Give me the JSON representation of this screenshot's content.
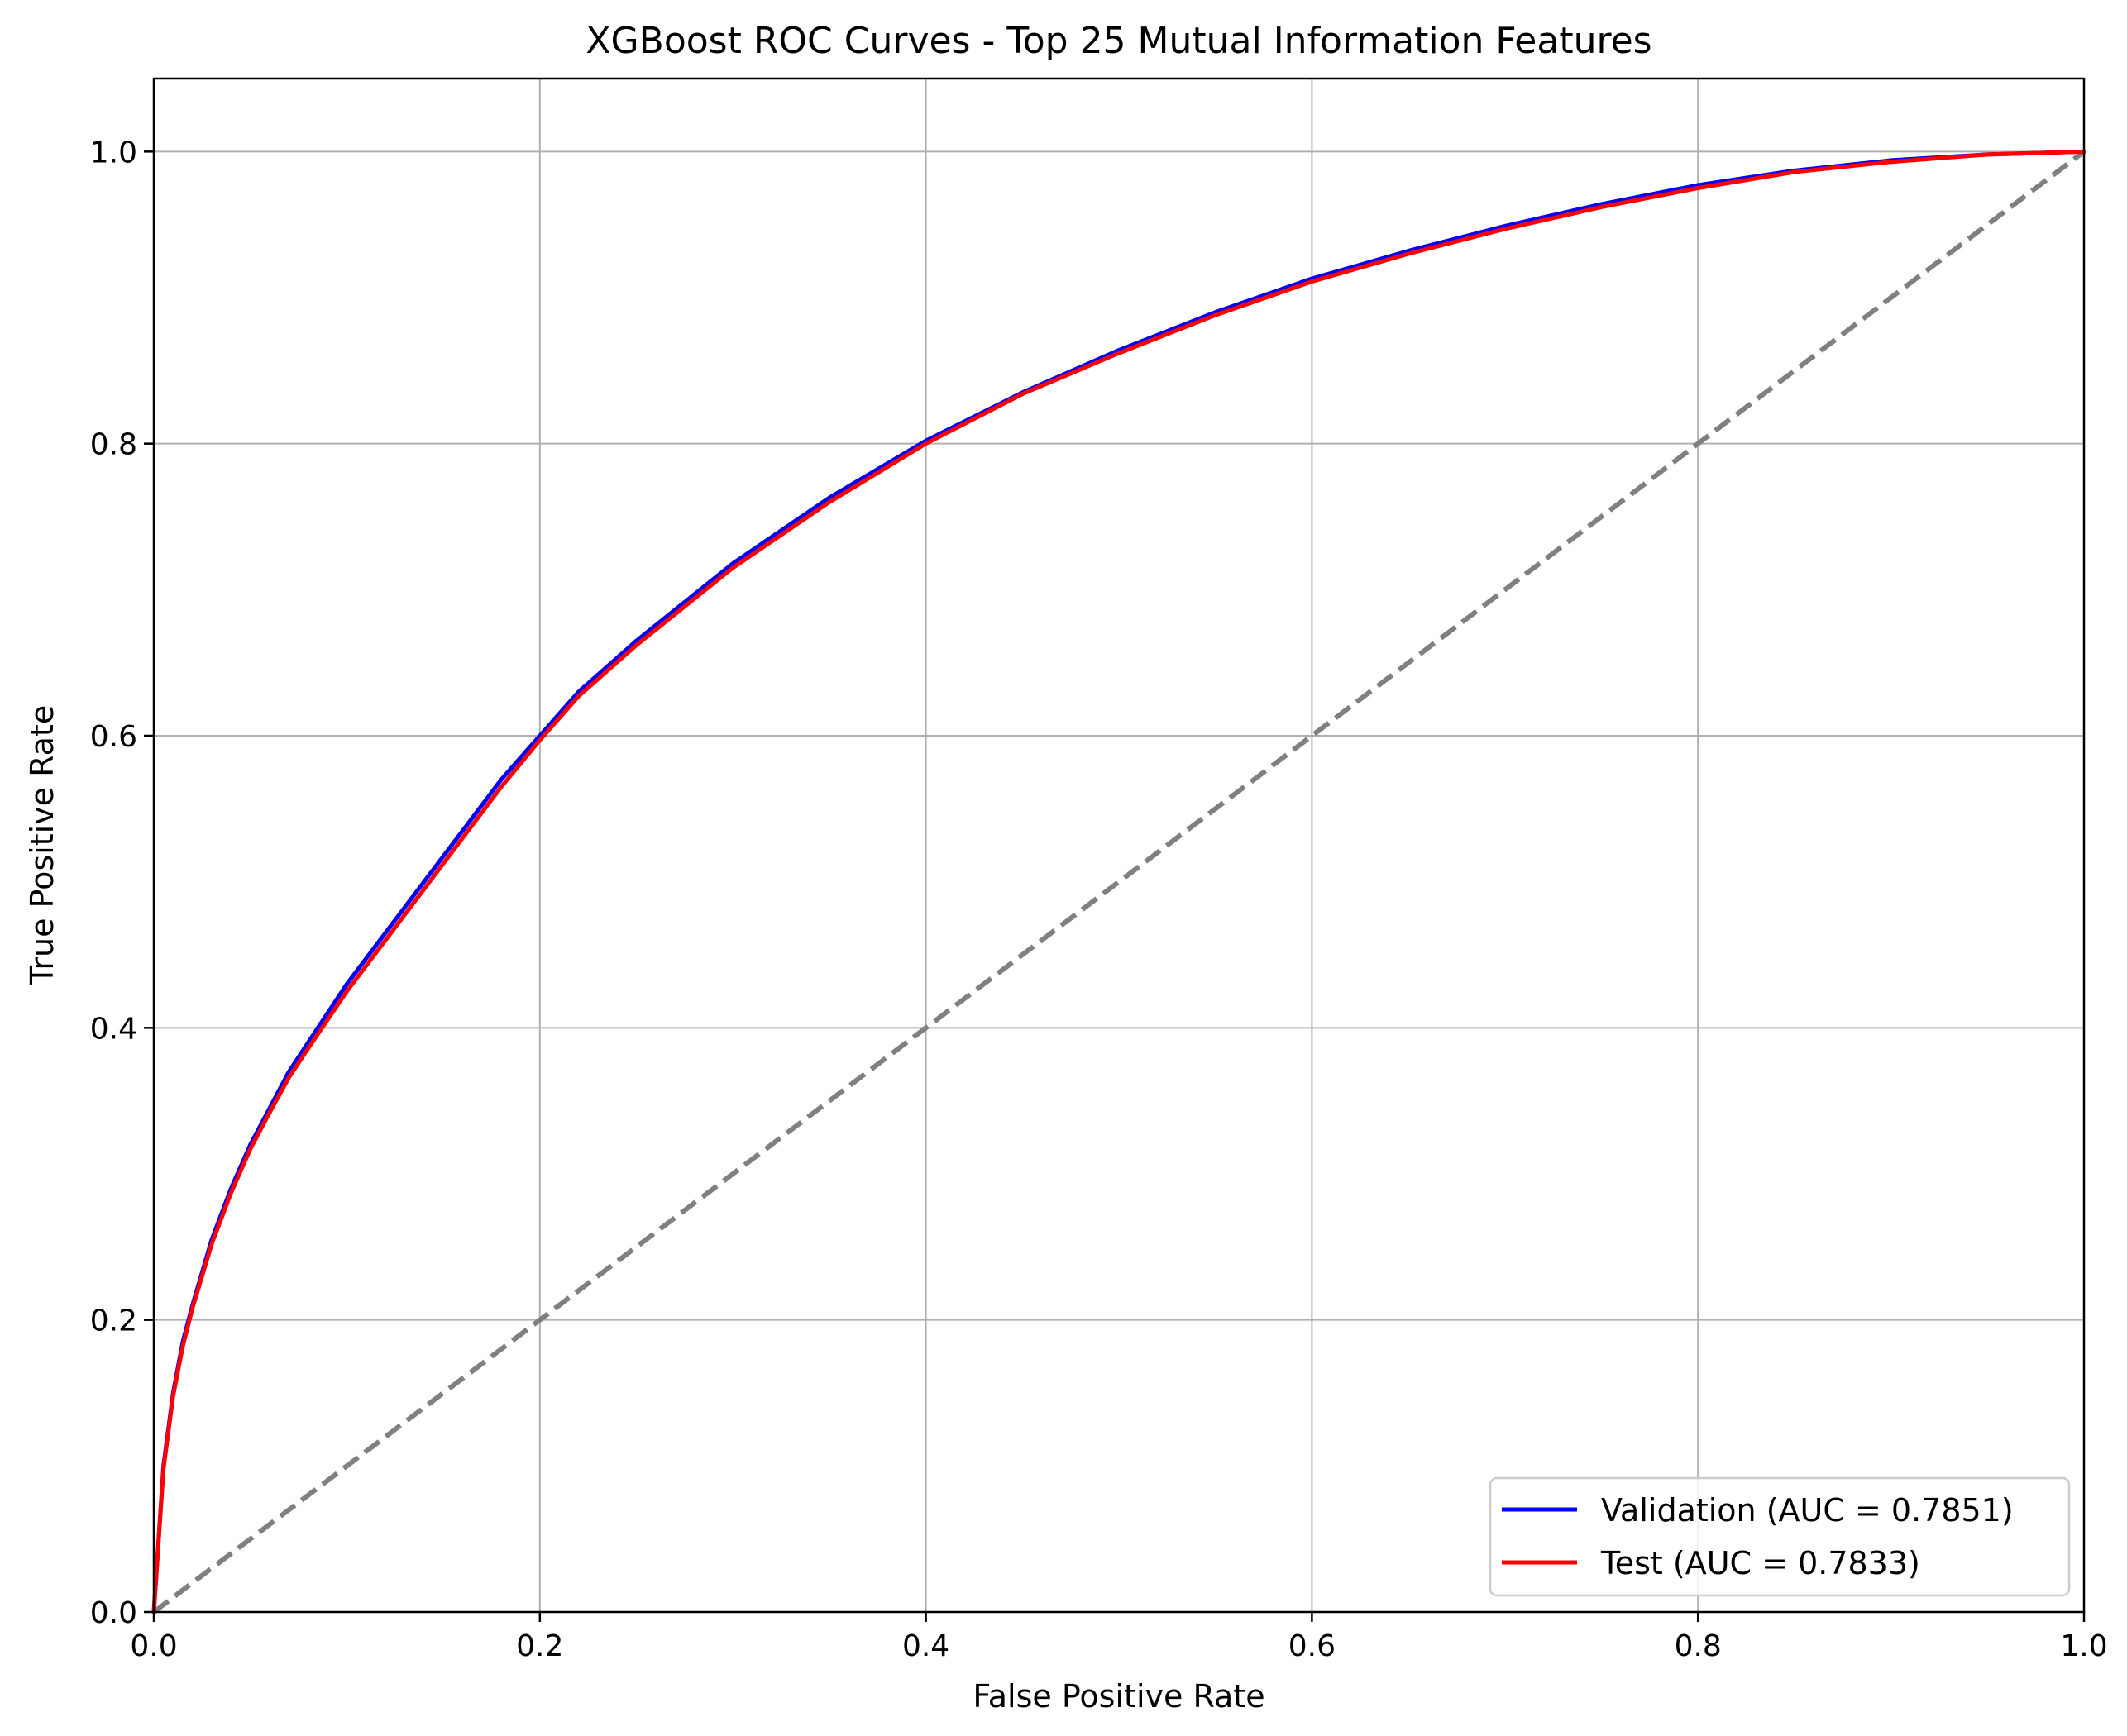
{
  "chart_data": {
    "type": "line",
    "title": "XGBoost ROC Curves - Top 25 Mutual Information Features",
    "xlabel": "False Positive Rate",
    "ylabel": "True Positive Rate",
    "xlim": [
      0.0,
      1.0
    ],
    "ylim": [
      0.0,
      1.05
    ],
    "xticks": [
      0.0,
      0.2,
      0.4,
      0.6,
      0.8,
      1.0
    ],
    "yticks": [
      0.0,
      0.2,
      0.4,
      0.6,
      0.8,
      1.0
    ],
    "xtick_labels": [
      "0.0",
      "0.2",
      "0.4",
      "0.6",
      "0.8",
      "1.0"
    ],
    "ytick_labels": [
      "0.0",
      "0.2",
      "0.4",
      "0.6",
      "0.8",
      "1.0"
    ],
    "grid": true,
    "legend_position": "lower-right",
    "series": [
      {
        "name": "Validation (AUC = 0.7851)",
        "color": "#0000ff",
        "line_style": "solid",
        "x": [
          0.0,
          0.005,
          0.01,
          0.015,
          0.02,
          0.03,
          0.04,
          0.05,
          0.06,
          0.07,
          0.08,
          0.1,
          0.12,
          0.14,
          0.16,
          0.18,
          0.2,
          0.22,
          0.25,
          0.3,
          0.35,
          0.4,
          0.45,
          0.5,
          0.55,
          0.6,
          0.65,
          0.7,
          0.75,
          0.8,
          0.85,
          0.9,
          0.95,
          1.0
        ],
        "y": [
          0.0,
          0.1,
          0.15,
          0.185,
          0.21,
          0.255,
          0.29,
          0.32,
          0.345,
          0.37,
          0.39,
          0.43,
          0.465,
          0.5,
          0.535,
          0.57,
          0.6,
          0.63,
          0.665,
          0.718,
          0.763,
          0.802,
          0.835,
          0.864,
          0.89,
          0.913,
          0.932,
          0.949,
          0.964,
          0.977,
          0.987,
          0.994,
          0.998,
          1.0
        ]
      },
      {
        "name": "Test (AUC = 0.7833)",
        "color": "#ff0000",
        "line_style": "solid",
        "x": [
          0.0,
          0.005,
          0.01,
          0.015,
          0.02,
          0.03,
          0.04,
          0.05,
          0.06,
          0.07,
          0.08,
          0.1,
          0.12,
          0.14,
          0.16,
          0.18,
          0.2,
          0.22,
          0.25,
          0.3,
          0.35,
          0.4,
          0.45,
          0.5,
          0.55,
          0.6,
          0.65,
          0.7,
          0.75,
          0.8,
          0.85,
          0.9,
          0.95,
          1.0
        ],
        "y": [
          0.0,
          0.098,
          0.148,
          0.182,
          0.208,
          0.252,
          0.287,
          0.317,
          0.342,
          0.366,
          0.386,
          0.425,
          0.46,
          0.495,
          0.53,
          0.565,
          0.597,
          0.627,
          0.662,
          0.715,
          0.76,
          0.8,
          0.834,
          0.862,
          0.888,
          0.911,
          0.93,
          0.947,
          0.962,
          0.975,
          0.986,
          0.993,
          0.998,
          1.0
        ]
      },
      {
        "color": "#808080",
        "line_style": "dashed",
        "x": [
          0.0,
          1.0
        ],
        "y": [
          0.0,
          1.0
        ]
      }
    ]
  }
}
